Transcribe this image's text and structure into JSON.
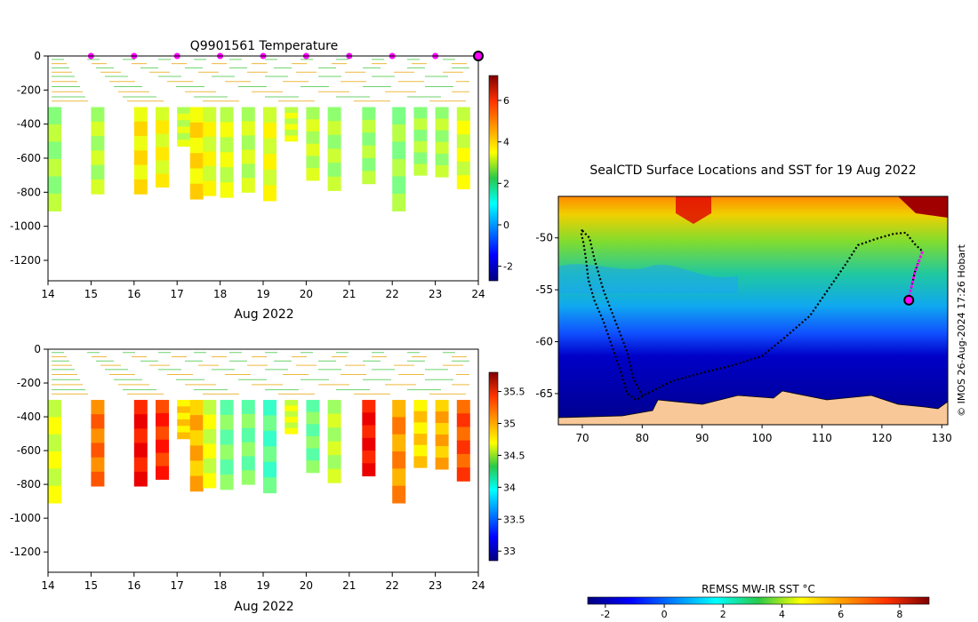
{
  "colors": {
    "magenta": "#ff00ff",
    "land": "#f8c898",
    "track": "#000000"
  },
  "chart_data": [
    {
      "id": "temperature-section",
      "type": "heatmap",
      "title": "Q9901561  Temperature",
      "xlabel": "Aug 2022",
      "x_ticks": [
        "14",
        "15",
        "16",
        "17",
        "18",
        "19",
        "20",
        "21",
        "22",
        "23",
        "24"
      ],
      "y_ticks": [
        "0",
        "-200",
        "-400",
        "-600",
        "-800",
        "-1000",
        "-1200"
      ],
      "xlim": [
        14,
        24
      ],
      "ylim": [
        -1320,
        0
      ],
      "colorbar": {
        "ticks": [
          "-2",
          "0",
          "2",
          "4",
          "6"
        ],
        "range": [
          -2.7,
          7.2
        ],
        "colormap": "jet"
      },
      "surface_markers_x": [
        15,
        16,
        17,
        18,
        19,
        20,
        21,
        22,
        23,
        24
      ],
      "profiles": [
        {
          "x": 14,
          "bottom": -910,
          "scalar": 2.6
        },
        {
          "x": 15,
          "bottom": -810,
          "scalar": 2.8
        },
        {
          "x": 16,
          "bottom": -810,
          "scalar": 3.6
        },
        {
          "x": 16.5,
          "bottom": -770,
          "scalar": 3.4
        },
        {
          "x": 17,
          "bottom": -530,
          "scalar": 3.0
        },
        {
          "x": 17.3,
          "bottom": -840,
          "scalar": 3.7
        },
        {
          "x": 17.6,
          "bottom": -820,
          "scalar": 3.3
        },
        {
          "x": 18,
          "bottom": -830,
          "scalar": 3.1
        },
        {
          "x": 18.5,
          "bottom": -800,
          "scalar": 2.9
        },
        {
          "x": 19,
          "bottom": -850,
          "scalar": 3.3
        },
        {
          "x": 19.5,
          "bottom": -500,
          "scalar": 3.1
        },
        {
          "x": 20,
          "bottom": -730,
          "scalar": 2.9
        },
        {
          "x": 20.5,
          "bottom": -790,
          "scalar": 2.7
        },
        {
          "x": 21.3,
          "bottom": -750,
          "scalar": 2.6
        },
        {
          "x": 22,
          "bottom": -910,
          "scalar": 2.5
        },
        {
          "x": 22.5,
          "bottom": -700,
          "scalar": 2.6
        },
        {
          "x": 23,
          "bottom": -710,
          "scalar": 2.7
        },
        {
          "x": 23.5,
          "bottom": -780,
          "scalar": 3.2
        }
      ]
    },
    {
      "id": "salinity-section",
      "type": "heatmap",
      "title": "",
      "xlabel": "Aug 2022",
      "x_ticks": [
        "14",
        "15",
        "16",
        "17",
        "18",
        "19",
        "20",
        "21",
        "22",
        "23",
        "24"
      ],
      "y_ticks": [
        "0",
        "-200",
        "-400",
        "-600",
        "-800",
        "-1000",
        "-1200"
      ],
      "xlim": [
        14,
        24
      ],
      "ylim": [
        -1320,
        0
      ],
      "colorbar": {
        "ticks": [
          "33",
          "33.5",
          "34",
          "34.5",
          "35",
          "35.5"
        ],
        "range": [
          32.85,
          35.8
        ],
        "colormap": "jet"
      },
      "profiles": [
        {
          "x": 14,
          "bottom": -910,
          "scalar": 34.6
        },
        {
          "x": 15,
          "bottom": -810,
          "scalar": 35.1
        },
        {
          "x": 16,
          "bottom": -810,
          "scalar": 35.4
        },
        {
          "x": 16.5,
          "bottom": -770,
          "scalar": 35.3
        },
        {
          "x": 17,
          "bottom": -530,
          "scalar": 34.8
        },
        {
          "x": 17.3,
          "bottom": -840,
          "scalar": 34.9
        },
        {
          "x": 17.6,
          "bottom": -820,
          "scalar": 34.6
        },
        {
          "x": 18,
          "bottom": -830,
          "scalar": 34.3
        },
        {
          "x": 18.5,
          "bottom": -800,
          "scalar": 34.3
        },
        {
          "x": 19,
          "bottom": -850,
          "scalar": 34.2
        },
        {
          "x": 19.5,
          "bottom": -500,
          "scalar": 34.6
        },
        {
          "x": 20,
          "bottom": -730,
          "scalar": 34.3
        },
        {
          "x": 20.5,
          "bottom": -790,
          "scalar": 34.5
        },
        {
          "x": 21.3,
          "bottom": -750,
          "scalar": 35.4
        },
        {
          "x": 22,
          "bottom": -910,
          "scalar": 35.0
        },
        {
          "x": 22.5,
          "bottom": -700,
          "scalar": 34.8
        },
        {
          "x": 23,
          "bottom": -710,
          "scalar": 34.9
        },
        {
          "x": 23.5,
          "bottom": -780,
          "scalar": 35.2
        }
      ]
    },
    {
      "id": "sst-map",
      "type": "heatmap",
      "title": "SealCTD Surface Locations and SST for 19 Aug 2022",
      "x_ticks": [
        "70",
        "80",
        "90",
        "100",
        "110",
        "120",
        "130"
      ],
      "y_ticks": [
        "-50",
        "-55",
        "-60",
        "-65"
      ],
      "xlim": [
        66,
        131
      ],
      "ylim": [
        -68,
        -46
      ],
      "credit": "© IMOS 26-Aug-2024 17:26 Hobart",
      "colorbar": {
        "label": "REMSS MW-IR SST °C",
        "ticks": [
          "-2",
          "0",
          "2",
          "4",
          "6",
          "8"
        ],
        "range": [
          -2.6,
          9
        ]
      },
      "track": [
        [
          70,
          -49.2
        ],
        [
          69.8,
          -49.5
        ],
        [
          70.2,
          -50.5
        ],
        [
          70.6,
          -52
        ],
        [
          71,
          -54
        ],
        [
          72,
          -56
        ],
        [
          73.5,
          -58
        ],
        [
          75,
          -60.5
        ],
        [
          76.5,
          -63
        ],
        [
          77.5,
          -65
        ],
        [
          79,
          -65.6
        ],
        [
          81.5,
          -64.8
        ],
        [
          85,
          -63.8
        ],
        [
          90,
          -63
        ],
        [
          95,
          -62.3
        ],
        [
          100,
          -61.4
        ],
        [
          104,
          -59.5
        ],
        [
          108,
          -57.5
        ],
        [
          111,
          -55
        ],
        [
          114,
          -52.5
        ],
        [
          116,
          -50.7
        ],
        [
          119,
          -50.1
        ],
        [
          122,
          -49.6
        ],
        [
          124,
          -49.5
        ],
        [
          125.5,
          -50.6
        ],
        [
          126.8,
          -51.3
        ],
        [
          126.2,
          -52.2
        ],
        [
          125.5,
          -53.3
        ],
        [
          125,
          -54.6
        ],
        [
          124.5,
          -55.8
        ]
      ],
      "highlight_track": [
        [
          126.8,
          -51.3
        ],
        [
          126.2,
          -52.2
        ],
        [
          125.5,
          -53.3
        ],
        [
          125,
          -54.6
        ],
        [
          124.5,
          -55.8
        ]
      ],
      "current_position": [
        124.5,
        -56.0
      ]
    }
  ]
}
